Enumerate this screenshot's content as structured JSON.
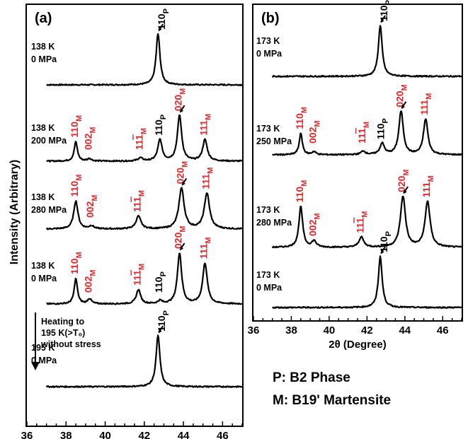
{
  "y_axis_label": "Intensity  (Arbitrary)",
  "legend": {
    "p_line": "P: B2 Phase",
    "m_line": "M: B19' Martensite"
  },
  "colors": {
    "trace": "#000000",
    "martensite_label": "#e8252a",
    "parent_label": "#000000"
  },
  "chart_data": [
    {
      "type": "line",
      "panel_label": "(a)",
      "xlabel": "2θ  (Degree)",
      "ylabel": "Intensity  (Arbitrary)",
      "xlim": [
        36,
        47
      ],
      "xticks": [
        36,
        38,
        40,
        42,
        44,
        46
      ],
      "series": [
        {
          "condition": [
            "138 K",
            "0 MPa"
          ],
          "peaks": [
            {
              "x": 42.7,
              "h": 1.0,
              "w": 0.12
            }
          ],
          "labels": [
            {
              "text": "110",
              "sub": "P",
              "x": 42.7,
              "phase": "P"
            }
          ]
        },
        {
          "condition": [
            "138 K",
            "200 MPa"
          ],
          "peaks": [
            {
              "x": 38.5,
              "h": 0.38,
              "w": 0.1
            },
            {
              "x": 39.2,
              "h": 0.05,
              "w": 0.12
            },
            {
              "x": 41.8,
              "h": 0.06,
              "w": 0.14
            },
            {
              "x": 42.8,
              "h": 0.42,
              "w": 0.13
            },
            {
              "x": 43.8,
              "h": 0.9,
              "w": 0.13
            },
            {
              "x": 45.1,
              "h": 0.42,
              "w": 0.14
            }
          ],
          "labels": [
            {
              "text": "110",
              "sub": "M",
              "x": 38.5,
              "phase": "M"
            },
            {
              "text": "002",
              "sub": "M",
              "x": 39.2,
              "phase": "M"
            },
            {
              "text": "11",
              "bar": "1",
              "sub": "M",
              "x": 41.8,
              "phase": "M"
            },
            {
              "text": "110",
              "sub": "P",
              "x": 42.8,
              "phase": "P"
            },
            {
              "text": "020",
              "sub": "M",
              "x": 43.8,
              "phase": "M"
            },
            {
              "text": "111",
              "sub": "M",
              "x": 45.1,
              "phase": "M"
            }
          ]
        },
        {
          "condition": [
            "138 K",
            "280 MPa"
          ],
          "peaks": [
            {
              "x": 38.5,
              "h": 0.55,
              "w": 0.13
            },
            {
              "x": 39.3,
              "h": 0.06,
              "w": 0.14
            },
            {
              "x": 41.7,
              "h": 0.25,
              "w": 0.15
            },
            {
              "x": 43.9,
              "h": 0.8,
              "w": 0.16
            },
            {
              "x": 45.2,
              "h": 0.7,
              "w": 0.16
            }
          ],
          "labels": [
            {
              "text": "110",
              "sub": "M",
              "x": 38.5,
              "phase": "M"
            },
            {
              "text": "002",
              "sub": "M",
              "x": 39.3,
              "phase": "M"
            },
            {
              "text": "11",
              "bar": "1",
              "sub": "M",
              "x": 41.7,
              "phase": "M"
            },
            {
              "text": "020",
              "sub": "M",
              "x": 43.9,
              "phase": "M"
            },
            {
              "text": "111",
              "sub": "M",
              "x": 45.2,
              "phase": "M"
            }
          ]
        },
        {
          "condition": [
            "138 K",
            "0 MPa"
          ],
          "peaks": [
            {
              "x": 38.5,
              "h": 0.5,
              "w": 0.1
            },
            {
              "x": 39.2,
              "h": 0.1,
              "w": 0.12
            },
            {
              "x": 41.7,
              "h": 0.28,
              "w": 0.13
            },
            {
              "x": 42.8,
              "h": 0.06,
              "w": 0.12
            },
            {
              "x": 43.8,
              "h": 1.0,
              "w": 0.13
            },
            {
              "x": 45.1,
              "h": 0.8,
              "w": 0.14
            }
          ],
          "labels": [
            {
              "text": "110",
              "sub": "M",
              "x": 38.5,
              "phase": "M"
            },
            {
              "text": "002",
              "sub": "M",
              "x": 39.2,
              "phase": "M"
            },
            {
              "text": "11",
              "bar": "1",
              "sub": "M",
              "x": 41.7,
              "phase": "M"
            },
            {
              "text": "110",
              "sub": "P",
              "x": 42.8,
              "phase": "P"
            },
            {
              "text": "020",
              "sub": "M",
              "x": 43.8,
              "phase": "M"
            },
            {
              "text": "111",
              "sub": "M",
              "x": 45.1,
              "phase": "M"
            }
          ]
        },
        {
          "condition": [
            "195 K",
            "0 MPa"
          ],
          "peaks": [
            {
              "x": 42.7,
              "h": 1.0,
              "w": 0.12
            }
          ],
          "labels": [
            {
              "text": "110",
              "sub": "P",
              "x": 42.7,
              "phase": "P"
            }
          ]
        }
      ],
      "annotation": [
        "Heating to",
        "195 K(>T₀)",
        "without stress"
      ]
    },
    {
      "type": "line",
      "panel_label": "(b)",
      "xlabel": "2θ  (Degree)",
      "xlim": [
        36,
        47
      ],
      "xticks": [
        36,
        38,
        40,
        42,
        44,
        46
      ],
      "series": [
        {
          "condition": [
            "173 K",
            "0 MPa"
          ],
          "peaks": [
            {
              "x": 42.7,
              "h": 1.0,
              "w": 0.12
            }
          ],
          "labels": [
            {
              "text": "110",
              "sub": "P",
              "x": 42.7,
              "phase": "P"
            }
          ]
        },
        {
          "condition": [
            "173 K",
            "250 MPa"
          ],
          "peaks": [
            {
              "x": 38.5,
              "h": 0.42,
              "w": 0.1
            },
            {
              "x": 39.2,
              "h": 0.06,
              "w": 0.12
            },
            {
              "x": 41.8,
              "h": 0.07,
              "w": 0.14
            },
            {
              "x": 42.8,
              "h": 0.22,
              "w": 0.14
            },
            {
              "x": 43.8,
              "h": 0.85,
              "w": 0.14
            },
            {
              "x": 45.1,
              "h": 0.7,
              "w": 0.14
            }
          ],
          "labels": [
            {
              "text": "110",
              "sub": "M",
              "x": 38.5,
              "phase": "M"
            },
            {
              "text": "002",
              "sub": "M",
              "x": 39.2,
              "phase": "M"
            },
            {
              "text": "11",
              "bar": "1",
              "sub": "M",
              "x": 41.8,
              "phase": "M"
            },
            {
              "text": "110",
              "sub": "P",
              "x": 42.8,
              "phase": "P"
            },
            {
              "text": "020",
              "sub": "M",
              "x": 43.8,
              "phase": "M"
            },
            {
              "text": "111",
              "sub": "M",
              "x": 45.1,
              "phase": "M"
            }
          ]
        },
        {
          "condition": [
            "173 K",
            "280 MPa"
          ],
          "peaks": [
            {
              "x": 38.5,
              "h": 0.8,
              "w": 0.12
            },
            {
              "x": 39.2,
              "h": 0.12,
              "w": 0.14
            },
            {
              "x": 41.7,
              "h": 0.2,
              "w": 0.15
            },
            {
              "x": 43.9,
              "h": 1.0,
              "w": 0.16
            },
            {
              "x": 45.2,
              "h": 0.9,
              "w": 0.16
            }
          ],
          "labels": [
            {
              "text": "110",
              "sub": "M",
              "x": 38.5,
              "phase": "M"
            },
            {
              "text": "002",
              "sub": "M",
              "x": 39.2,
              "phase": "M"
            },
            {
              "text": "11",
              "bar": "1",
              "sub": "M",
              "x": 41.7,
              "phase": "M"
            },
            {
              "text": "020",
              "sub": "M",
              "x": 43.9,
              "phase": "M"
            },
            {
              "text": "111",
              "sub": "M",
              "x": 45.2,
              "phase": "M"
            }
          ]
        },
        {
          "condition": [
            "173 K",
            "0 MPa"
          ],
          "peaks": [
            {
              "x": 42.7,
              "h": 1.0,
              "w": 0.12
            }
          ],
          "labels": [
            {
              "text": "110",
              "sub": "P",
              "x": 42.7,
              "phase": "P"
            }
          ]
        }
      ]
    }
  ]
}
